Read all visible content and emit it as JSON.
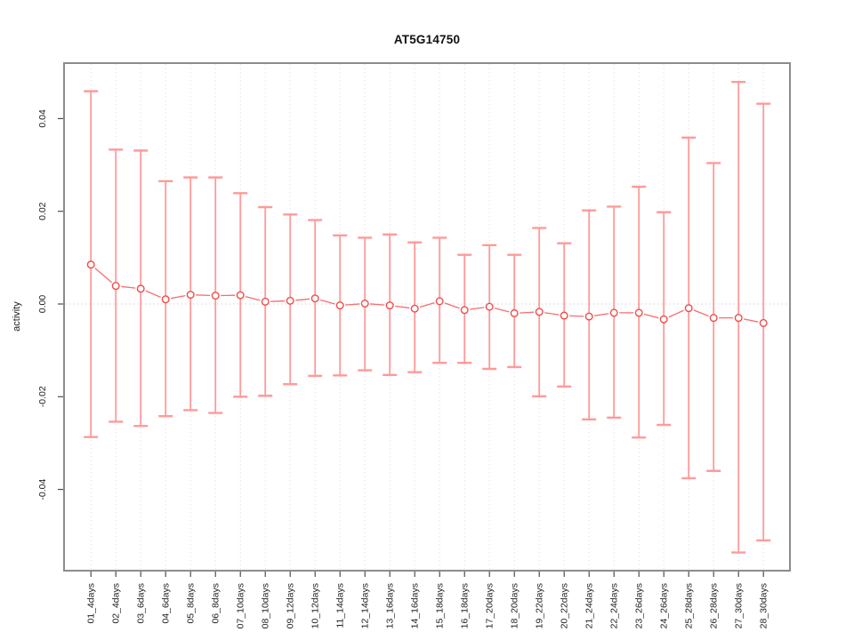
{
  "chart_data": {
    "type": "line",
    "title": "AT5G14750",
    "xlabel": "",
    "ylabel": "activity",
    "legend_position": "none",
    "grid": "vertical dotted gridline at every category; dotted horizontal line at y=0",
    "marker": "open-circle",
    "error_bars": true,
    "ylim": [
      -0.0575,
      0.052
    ],
    "categories": [
      "01_4days",
      "02_4days",
      "03_6days",
      "04_6days",
      "05_8days",
      "06_8days",
      "07_10days",
      "08_10days",
      "09_12days",
      "10_12days",
      "11_14days",
      "12_14days",
      "13_16days",
      "14_16days",
      "15_18days",
      "16_18days",
      "17_20days",
      "18_20days",
      "19_22days",
      "20_22days",
      "21_24days",
      "22_24days",
      "23_26days",
      "24_26days",
      "25_28days",
      "26_28days",
      "27_30days",
      "28_30days"
    ],
    "series": [
      {
        "name": "activity",
        "values": [
          0.0085,
          0.0039,
          0.0033,
          0.001,
          0.002,
          0.0018,
          0.0019,
          0.0005,
          0.0007,
          0.0012,
          -0.0003,
          0.0001,
          -0.0003,
          -0.001,
          0.0006,
          -0.0013,
          -0.0006,
          -0.002,
          -0.0017,
          -0.0025,
          -0.0027,
          -0.0019,
          -0.0019,
          -0.0033,
          -0.0009,
          -0.003,
          -0.003,
          -0.0041
        ],
        "upper": [
          0.0459,
          0.0333,
          0.0331,
          0.0265,
          0.0273,
          0.0273,
          0.0239,
          0.0209,
          0.0193,
          0.0181,
          0.0148,
          0.0143,
          0.015,
          0.0133,
          0.0143,
          0.0106,
          0.0127,
          0.0106,
          0.0164,
          0.0131,
          0.0202,
          0.021,
          0.0253,
          0.0198,
          0.0359,
          0.0304,
          0.0479,
          0.0432
        ],
        "lower": [
          -0.0287,
          -0.0254,
          -0.0263,
          -0.0242,
          -0.0229,
          -0.0235,
          -0.02,
          -0.0198,
          -0.0173,
          -0.0155,
          -0.0154,
          -0.0143,
          -0.0153,
          -0.0147,
          -0.0127,
          -0.0127,
          -0.014,
          -0.0136,
          -0.0199,
          -0.0178,
          -0.0249,
          -0.0245,
          -0.0288,
          -0.0261,
          -0.0376,
          -0.036,
          -0.0536,
          -0.051
        ]
      }
    ],
    "yticks": [
      {
        "v": -0.04,
        "label": "-0.04"
      },
      {
        "v": -0.02,
        "label": "-0.02"
      },
      {
        "v": 0.0,
        "label": "0.00"
      },
      {
        "v": 0.02,
        "label": "0.02"
      },
      {
        "v": 0.04,
        "label": "0.04"
      }
    ],
    "colors": {
      "error_bar": "#ff9a9a",
      "segment": "#f66e6e",
      "point": "#f04b4b",
      "grid": "#e4e4e4",
      "zero_line": "#dcdcdc",
      "box": "#8c8c8c",
      "tick": "#3d3d3d",
      "label_text": "#222222"
    }
  }
}
